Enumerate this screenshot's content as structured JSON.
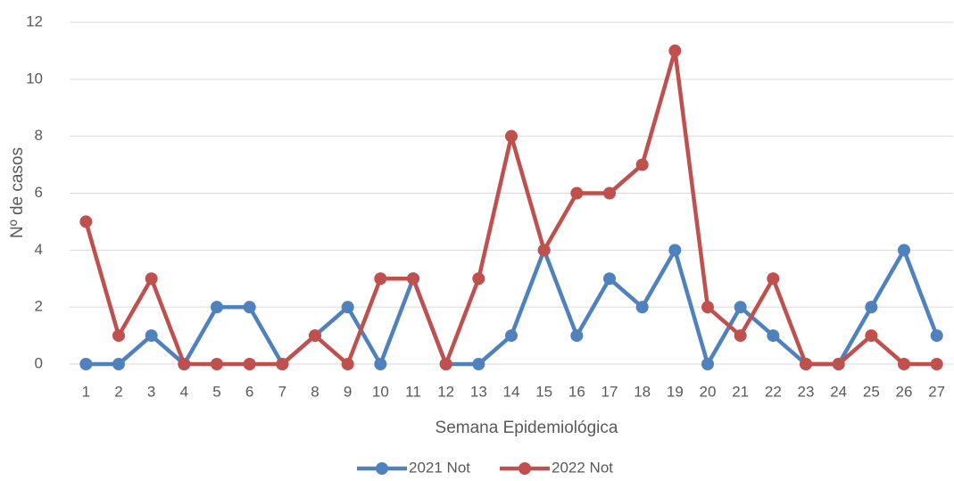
{
  "chart_data": {
    "type": "line",
    "x_label": "Semana Epidemiológica",
    "y_label": "Nº de casos",
    "categories": [
      "1",
      "2",
      "3",
      "4",
      "5",
      "6",
      "7",
      "8",
      "9",
      "10",
      "11",
      "12",
      "13",
      "14",
      "15",
      "16",
      "17",
      "18",
      "19",
      "20",
      "21",
      "22",
      "23",
      "24",
      "25",
      "26",
      "27"
    ],
    "series": [
      {
        "name": "2021 Not",
        "color": "#4f81bd",
        "values": [
          0,
          0,
          1,
          0,
          2,
          2,
          0,
          1,
          2,
          0,
          3,
          0,
          0,
          1,
          4,
          1,
          3,
          2,
          4,
          0,
          2,
          1,
          0,
          0,
          2,
          4,
          1
        ]
      },
      {
        "name": "2022 Not",
        "color": "#c0504d",
        "values": [
          5,
          1,
          3,
          0,
          0,
          0,
          0,
          1,
          0,
          3,
          3,
          0,
          3,
          8,
          4,
          6,
          6,
          7,
          11,
          2,
          1,
          3,
          0,
          0,
          1,
          0,
          0
        ]
      }
    ],
    "ylim": [
      0,
      12
    ],
    "yticks": [
      0,
      2,
      4,
      6,
      8,
      10,
      12
    ],
    "grid": true,
    "legend": "bottom"
  }
}
